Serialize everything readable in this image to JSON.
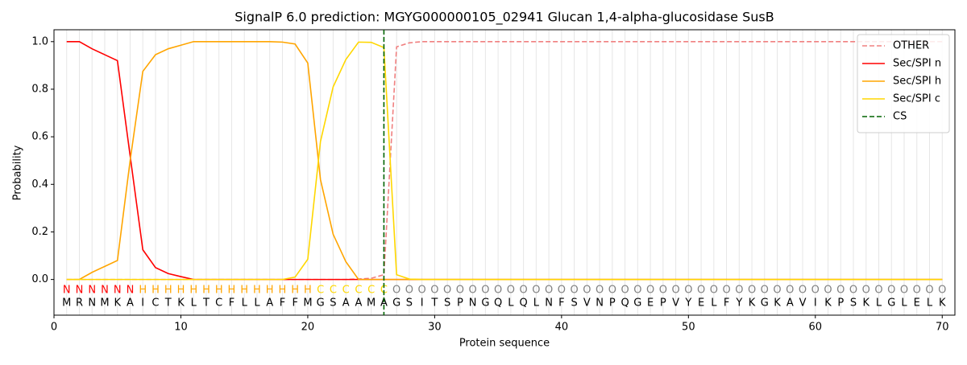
{
  "chart_data": {
    "type": "line",
    "title": "SignalP 6.0 prediction: MGYG000000105_02941 Glucan 1,4-alpha-glucosidase SusB",
    "xlabel": "Protein sequence",
    "ylabel": "Probability",
    "x": [
      1,
      2,
      3,
      4,
      5,
      6,
      7,
      8,
      9,
      10,
      11,
      12,
      13,
      14,
      15,
      16,
      17,
      18,
      19,
      20,
      21,
      22,
      23,
      24,
      25,
      26,
      27,
      28,
      29,
      30,
      31,
      32,
      33,
      34,
      35,
      36,
      37,
      38,
      39,
      40,
      41,
      42,
      43,
      44,
      45,
      46,
      47,
      48,
      49,
      50,
      51,
      52,
      53,
      54,
      55,
      56,
      57,
      58,
      59,
      60,
      61,
      62,
      63,
      64,
      65,
      66,
      67,
      68,
      69,
      70
    ],
    "series": [
      {
        "name": "OTHER",
        "color": "#f08080",
        "dashed": true,
        "values": [
          0,
          0,
          0,
          0,
          0,
          0,
          0,
          0,
          0,
          0,
          0,
          0,
          0,
          0,
          0,
          0,
          0,
          0,
          0,
          0,
          0,
          0,
          0,
          0.002,
          0.005,
          0.02,
          0.978,
          0.995,
          1,
          1,
          1,
          1,
          1,
          1,
          1,
          1,
          1,
          1,
          1,
          1,
          1,
          1,
          1,
          1,
          1,
          1,
          1,
          1,
          1,
          1,
          1,
          1,
          1,
          1,
          1,
          1,
          1,
          1,
          1,
          1,
          1,
          1,
          1,
          1,
          1,
          1,
          1,
          1,
          1,
          1
        ]
      },
      {
        "name": "Sec/SPI n",
        "color": "#ff0000",
        "values": [
          1,
          1,
          0.97,
          0.945,
          0.92,
          0.52,
          0.125,
          0.05,
          0.025,
          0.012,
          0,
          0,
          0,
          0,
          0,
          0,
          0,
          0,
          0,
          0,
          0,
          0,
          0,
          0,
          0,
          0,
          0,
          0,
          0,
          0,
          0,
          0,
          0,
          0,
          0,
          0,
          0,
          0,
          0,
          0,
          0,
          0,
          0,
          0,
          0,
          0,
          0,
          0,
          0,
          0,
          0,
          0,
          0,
          0,
          0,
          0,
          0,
          0,
          0,
          0,
          0,
          0,
          0,
          0,
          0,
          0,
          0,
          0,
          0,
          0
        ]
      },
      {
        "name": "Sec/SPI h",
        "color": "#ffa500",
        "values": [
          0,
          0,
          0.03,
          0.055,
          0.08,
          0.5,
          0.875,
          0.945,
          0.97,
          0.985,
          1,
          1,
          1,
          1,
          1,
          1,
          1,
          0.998,
          0.99,
          0.91,
          0.42,
          0.19,
          0.075,
          0,
          0,
          0,
          0,
          0,
          0,
          0,
          0,
          0,
          0,
          0,
          0,
          0,
          0,
          0,
          0,
          0,
          0,
          0,
          0,
          0,
          0,
          0,
          0,
          0,
          0,
          0,
          0,
          0,
          0,
          0,
          0,
          0,
          0,
          0,
          0,
          0,
          0,
          0,
          0,
          0,
          0,
          0,
          0,
          0,
          0,
          0
        ]
      },
      {
        "name": "Sec/SPI c",
        "color": "#ffd700",
        "values": [
          0,
          0,
          0,
          0,
          0,
          0,
          0,
          0,
          0,
          0,
          0,
          0,
          0,
          0,
          0,
          0,
          0,
          0,
          0.01,
          0.085,
          0.58,
          0.81,
          0.925,
          0.998,
          0.997,
          0.975,
          0.02,
          0.002,
          0,
          0,
          0,
          0,
          0,
          0,
          0,
          0,
          0,
          0,
          0,
          0,
          0,
          0,
          0,
          0,
          0,
          0,
          0,
          0,
          0,
          0,
          0,
          0,
          0,
          0,
          0,
          0,
          0,
          0,
          0,
          0,
          0,
          0,
          0,
          0,
          0,
          0,
          0,
          0,
          0,
          0
        ]
      }
    ],
    "cs": {
      "name": "CS",
      "x": 26,
      "color": "#006400"
    },
    "residues": [
      "M",
      "R",
      "N",
      "M",
      "K",
      "A",
      "I",
      "C",
      "T",
      "K",
      "L",
      "T",
      "C",
      "F",
      "L",
      "L",
      "A",
      "F",
      "F",
      "M",
      "G",
      "S",
      "A",
      "A",
      "M",
      "A",
      "G",
      "S",
      "I",
      "T",
      "S",
      "P",
      "N",
      "G",
      "Q",
      "L",
      "Q",
      "L",
      "N",
      "F",
      "S",
      "V",
      "N",
      "P",
      "Q",
      "G",
      "E",
      "P",
      "V",
      "Y",
      "E",
      "L",
      "F",
      "Y",
      "K",
      "G",
      "K",
      "A",
      "V",
      "I",
      "K",
      "P",
      "S",
      "K",
      "L",
      "G",
      "L",
      "E",
      "L",
      "K"
    ],
    "residue_labels": [
      "N",
      "N",
      "N",
      "N",
      "N",
      "N",
      "H",
      "H",
      "H",
      "H",
      "H",
      "H",
      "H",
      "H",
      "H",
      "H",
      "H",
      "H",
      "H",
      "H",
      "C",
      "C",
      "C",
      "C",
      "C",
      "C",
      "O",
      "O",
      "O",
      "O",
      "O",
      "O",
      "O",
      "O",
      "O",
      "O",
      "O",
      "O",
      "O",
      "O",
      "O",
      "O",
      "O",
      "O",
      "O",
      "O",
      "O",
      "O",
      "O",
      "O",
      "O",
      "O",
      "O",
      "O",
      "O",
      "O",
      "O",
      "O",
      "O",
      "O",
      "O",
      "O",
      "O",
      "O",
      "O",
      "O",
      "O",
      "O",
      "O",
      "O"
    ],
    "label_colors": {
      "N": "#ff0000",
      "H": "#ffa500",
      "C": "#ffd700",
      "O": "#808080"
    },
    "xlim": [
      0,
      71
    ],
    "ylim": [
      -0.15,
      1.05
    ],
    "xticks": [
      0,
      10,
      20,
      30,
      40,
      50,
      60,
      70
    ],
    "yticks": [
      {
        "value": 0,
        "label": "0.0"
      },
      0.2,
      0.4,
      0.6,
      0.8,
      {
        "value": 1,
        "label": "1.0"
      }
    ],
    "grid": true,
    "legend": "upper right"
  }
}
